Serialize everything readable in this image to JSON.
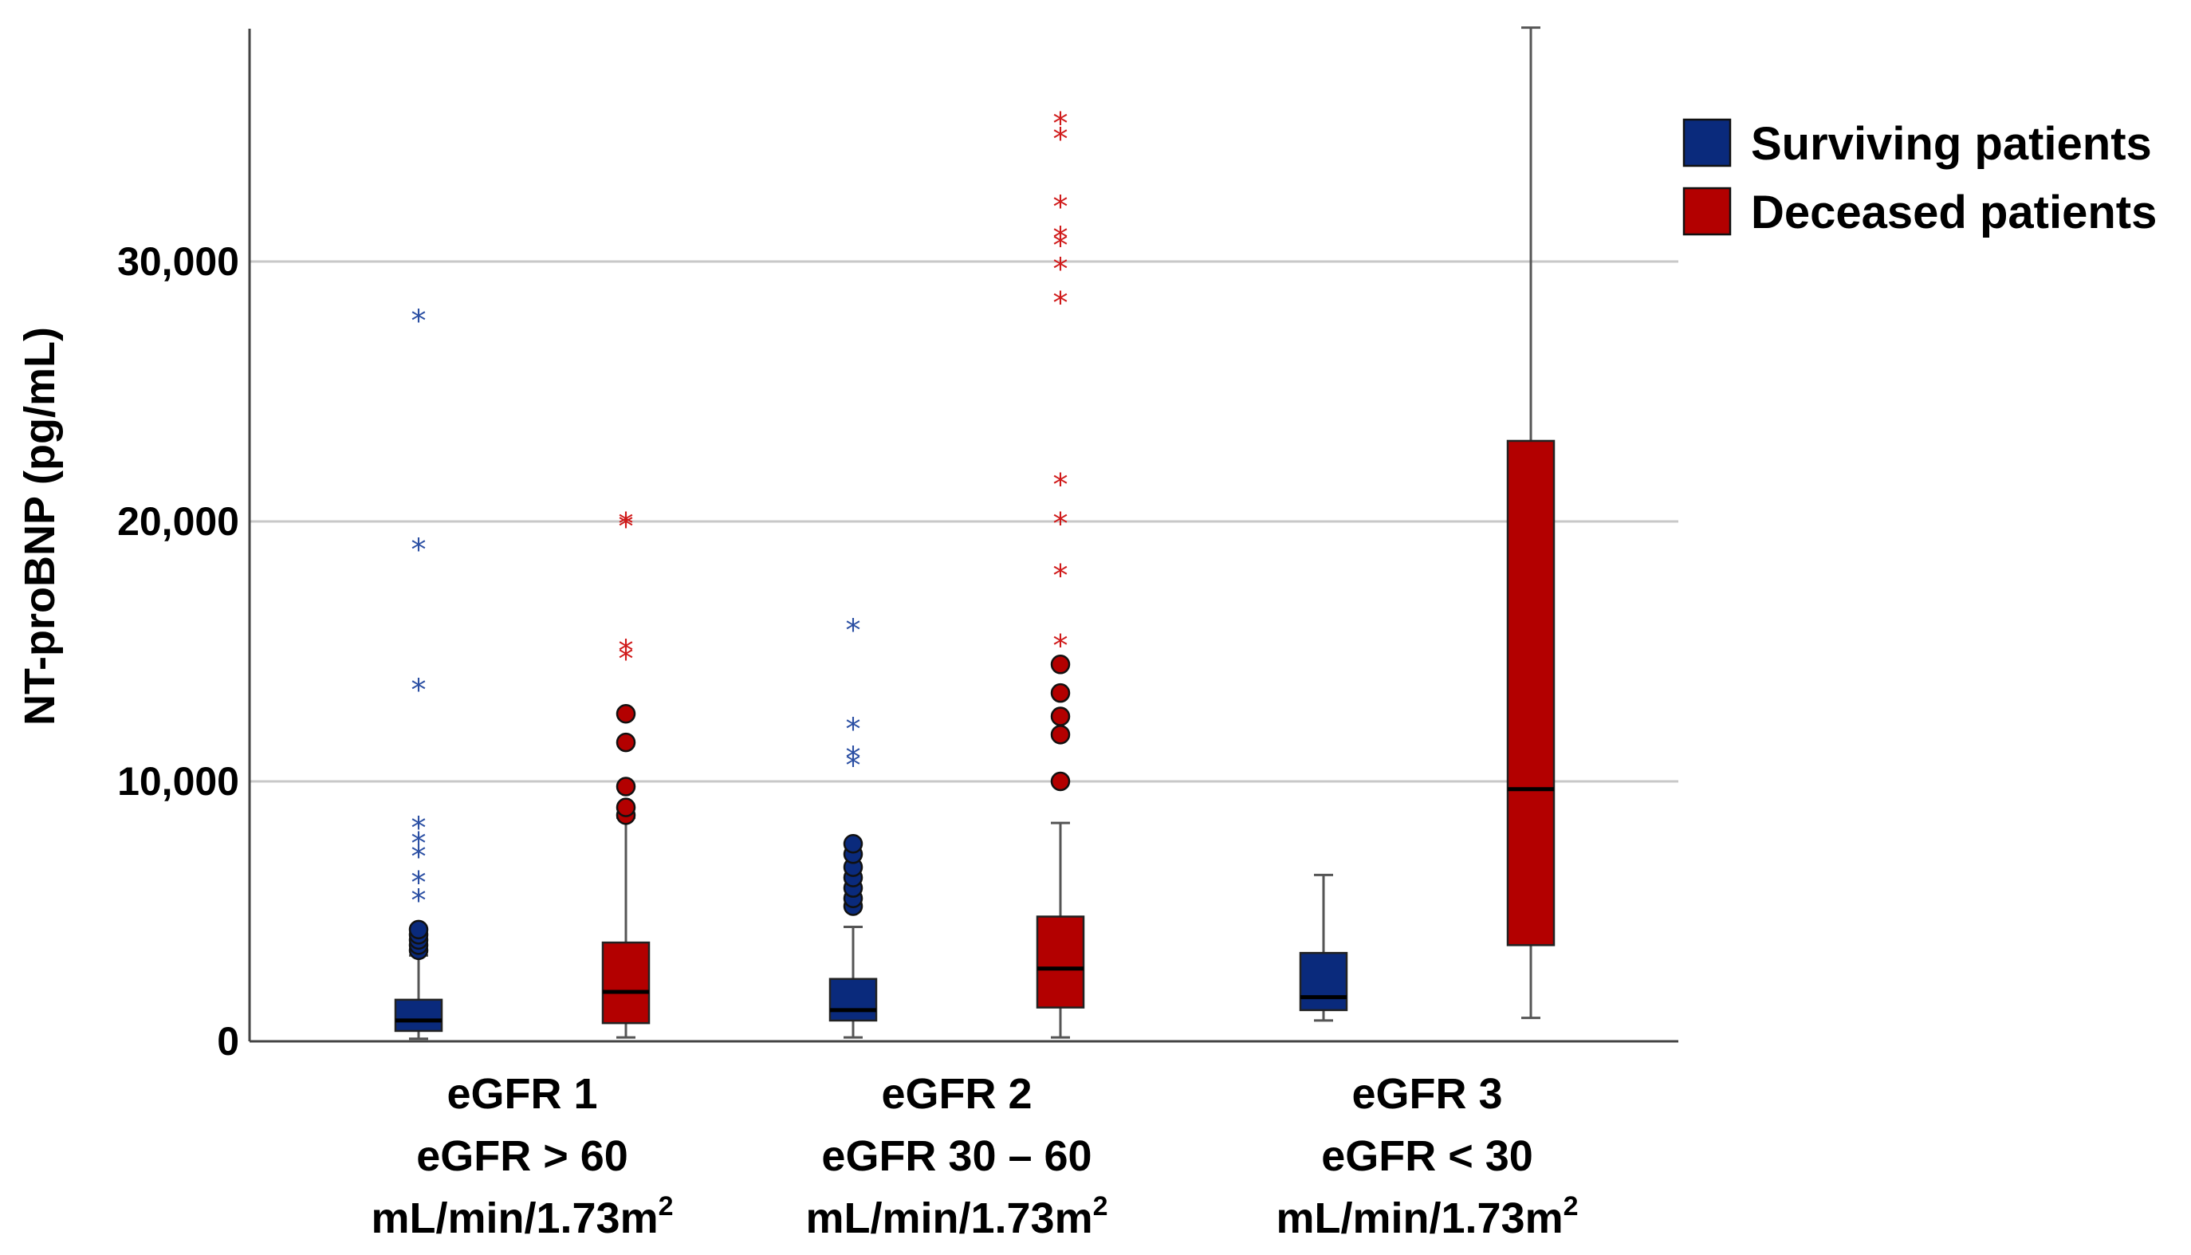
{
  "chart_data": {
    "type": "boxplot",
    "title": "",
    "ylabel": "NT-proBNP (pg/mL)",
    "ylim": [
      0,
      39000
    ],
    "yticks": [
      0,
      10000,
      20000,
      30000
    ],
    "ytick_labels": [
      "0",
      "10,000",
      "20,000",
      "30,000"
    ],
    "grid": "horizontal",
    "legend_position": "top-right",
    "colors": {
      "surviving": "#0a2a7c",
      "deceased": "#b30000",
      "grid": "#c8c8c8",
      "whisker": "#555555"
    },
    "categories": [
      {
        "line1": "eGFR 1",
        "line2": "eGFR > 60",
        "line3": "mL/min/1.73m",
        "sup": "2"
      },
      {
        "line1": "eGFR 2",
        "line2": "eGFR 30 – 60",
        "line3": "mL/min/1.73m",
        "sup": "2"
      },
      {
        "line1": "eGFR 3",
        "line2": "eGFR < 30",
        "line3": "mL/min/1.73m",
        "sup": "2"
      }
    ],
    "series": [
      {
        "name": "Surviving patients",
        "color": "#0a2a7c",
        "boxes": [
          {
            "min": 100,
            "q1": 400,
            "median": 800,
            "q3": 1600,
            "max": 3300,
            "outliers_circle": [
              3500,
              3700,
              3900,
              4100,
              4300
            ],
            "outliers_star": [
              5500,
              6200,
              7200,
              7700,
              8300,
              13600,
              19000,
              27800
            ]
          },
          {
            "min": 150,
            "q1": 800,
            "median": 1200,
            "q3": 2400,
            "max": 4400,
            "outliers_circle": [
              5200,
              5500,
              5900,
              6300,
              6700,
              7200,
              7600
            ],
            "outliers_star": [
              10700,
              11000,
              12100,
              15900
            ]
          },
          {
            "min": 800,
            "q1": 1200,
            "median": 1700,
            "q3": 3400,
            "max": 6400,
            "outliers_circle": [],
            "outliers_star": []
          }
        ]
      },
      {
        "name": "Deceased patients",
        "color": "#b30000",
        "boxes": [
          {
            "min": 150,
            "q1": 700,
            "median": 1900,
            "q3": 3800,
            "max": 8600,
            "outliers_circle": [
              8700,
              9000,
              9800,
              11500,
              12600
            ],
            "outliers_star": [
              14800,
              15100,
              19900,
              20000
            ]
          },
          {
            "min": 150,
            "q1": 1300,
            "median": 2800,
            "q3": 4800,
            "max": 8400,
            "outliers_circle": [
              10000,
              11800,
              12500,
              13400,
              14500
            ],
            "outliers_star": [
              15300,
              18000,
              20000,
              21500,
              28500,
              29800,
              30700,
              31000,
              32200,
              34800,
              35400
            ]
          },
          {
            "min": 900,
            "q1": 3700,
            "median": 9700,
            "q3": 23100,
            "max": 39000,
            "outliers_circle": [],
            "outliers_star": []
          }
        ]
      }
    ]
  }
}
